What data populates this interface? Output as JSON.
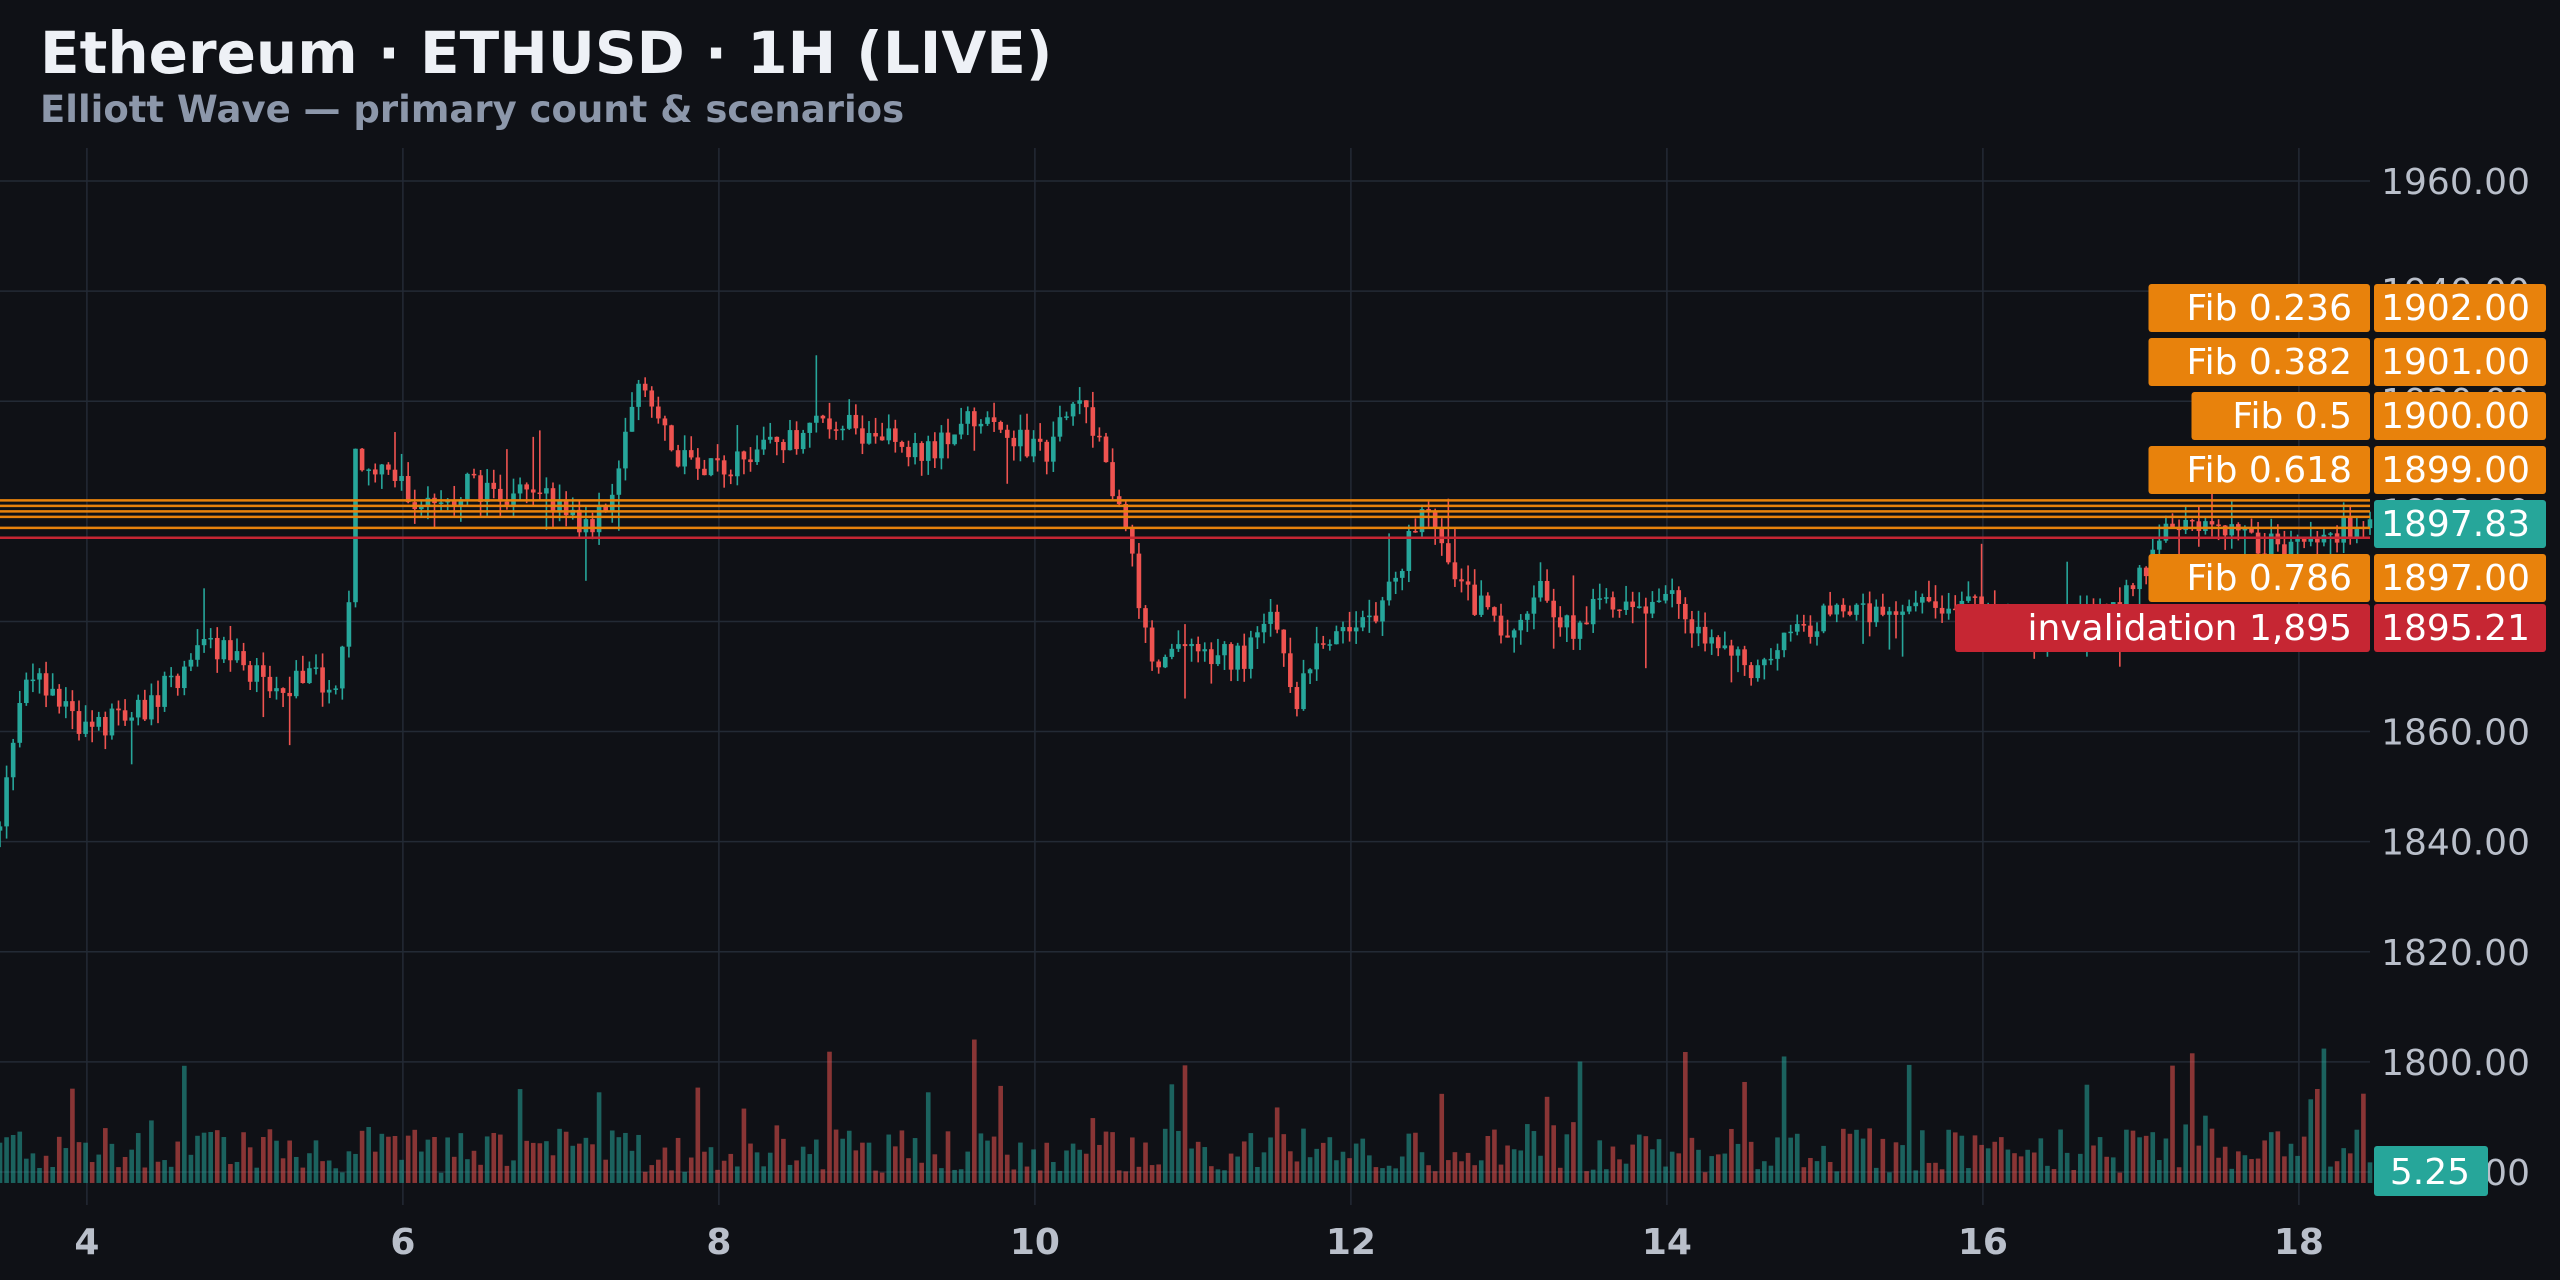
{
  "header": {
    "title": "Ethereum · ETHUSD · 1H (LIVE)",
    "subtitle": "Elliott Wave — primary count & scenarios"
  },
  "colors": {
    "background": "#0f1116",
    "grid": "#232a35",
    "up": "#26a69a",
    "down": "#ef5350",
    "fib": "#e8820c",
    "invalidation": "#c62633",
    "last_price": "#26a69a"
  },
  "chart_data": {
    "type": "candlestick",
    "symbol": "ETHUSD",
    "interval": "1H",
    "x_ticks": [
      "4",
      "6",
      "8",
      "10",
      "12",
      "14",
      "16",
      "18"
    ],
    "x_range_days": [
      3.45,
      18.45
    ],
    "y_ticks": [
      "1960.00",
      "1940.00",
      "1920.00",
      "1900.00",
      "1880.00",
      "1860.00",
      "1840.00",
      "1820.00",
      "1800.00",
      "1780.00"
    ],
    "y_range": [
      1774,
      1966
    ],
    "grid": true,
    "price_path": [
      [
        3.45,
        1842
      ],
      [
        3.6,
        1870
      ],
      [
        3.8,
        1868
      ],
      [
        4.0,
        1860
      ],
      [
        4.2,
        1863
      ],
      [
        4.4,
        1865
      ],
      [
        4.6,
        1871
      ],
      [
        4.8,
        1876
      ],
      [
        5.0,
        1872
      ],
      [
        5.2,
        1868
      ],
      [
        5.4,
        1869
      ],
      [
        5.6,
        1870
      ],
      [
        5.65,
        1880
      ],
      [
        5.7,
        1910
      ],
      [
        5.9,
        1908
      ],
      [
        6.0,
        1904
      ],
      [
        6.2,
        1901
      ],
      [
        6.4,
        1905
      ],
      [
        6.6,
        1903
      ],
      [
        6.8,
        1905
      ],
      [
        7.0,
        1900
      ],
      [
        7.2,
        1897
      ],
      [
        7.35,
        1905
      ],
      [
        7.5,
        1924
      ],
      [
        7.7,
        1911
      ],
      [
        8.0,
        1908
      ],
      [
        8.4,
        1912
      ],
      [
        8.7,
        1916
      ],
      [
        9.0,
        1914
      ],
      [
        9.3,
        1910
      ],
      [
        9.6,
        1917
      ],
      [
        9.9,
        1913
      ],
      [
        10.05,
        1910
      ],
      [
        10.25,
        1919
      ],
      [
        10.4,
        1915
      ],
      [
        10.5,
        1903
      ],
      [
        10.6,
        1893
      ],
      [
        10.75,
        1872
      ],
      [
        11.0,
        1875
      ],
      [
        11.3,
        1873
      ],
      [
        11.5,
        1880
      ],
      [
        11.65,
        1866
      ],
      [
        11.8,
        1875
      ],
      [
        12.0,
        1879
      ],
      [
        12.2,
        1882
      ],
      [
        12.4,
        1897
      ],
      [
        12.5,
        1903
      ],
      [
        12.6,
        1890
      ],
      [
        12.8,
        1883
      ],
      [
        13.0,
        1878
      ],
      [
        13.2,
        1885
      ],
      [
        13.4,
        1879
      ],
      [
        13.6,
        1885
      ],
      [
        13.8,
        1880
      ],
      [
        14.0,
        1885
      ],
      [
        14.2,
        1879
      ],
      [
        14.4,
        1876
      ],
      [
        14.6,
        1870
      ],
      [
        14.8,
        1878
      ],
      [
        15.0,
        1881
      ],
      [
        15.5,
        1882
      ],
      [
        16.0,
        1883
      ],
      [
        16.3,
        1878
      ],
      [
        16.6,
        1881
      ],
      [
        16.8,
        1880
      ],
      [
        17.0,
        1889
      ],
      [
        17.2,
        1897
      ],
      [
        17.5,
        1896
      ],
      [
        17.8,
        1894
      ],
      [
        18.0,
        1895
      ],
      [
        18.2,
        1896
      ],
      [
        18.45,
        1897.8
      ]
    ],
    "volume": {
      "last": "5.25",
      "label_price": "1780.00"
    },
    "fib_levels": [
      {
        "label": "Fib 0.236",
        "price": "1902.00"
      },
      {
        "label": "Fib 0.382",
        "price": "1901.00"
      },
      {
        "label": "Fib 0.5",
        "price": "1900.00"
      },
      {
        "label": "Fib 0.618",
        "price": "1899.00"
      },
      {
        "label": "Fib 0.786",
        "price": "1897.00"
      }
    ],
    "invalidation": {
      "label": "invalidation 1,895",
      "price": "1895.21"
    },
    "last_price": "1897.83"
  }
}
